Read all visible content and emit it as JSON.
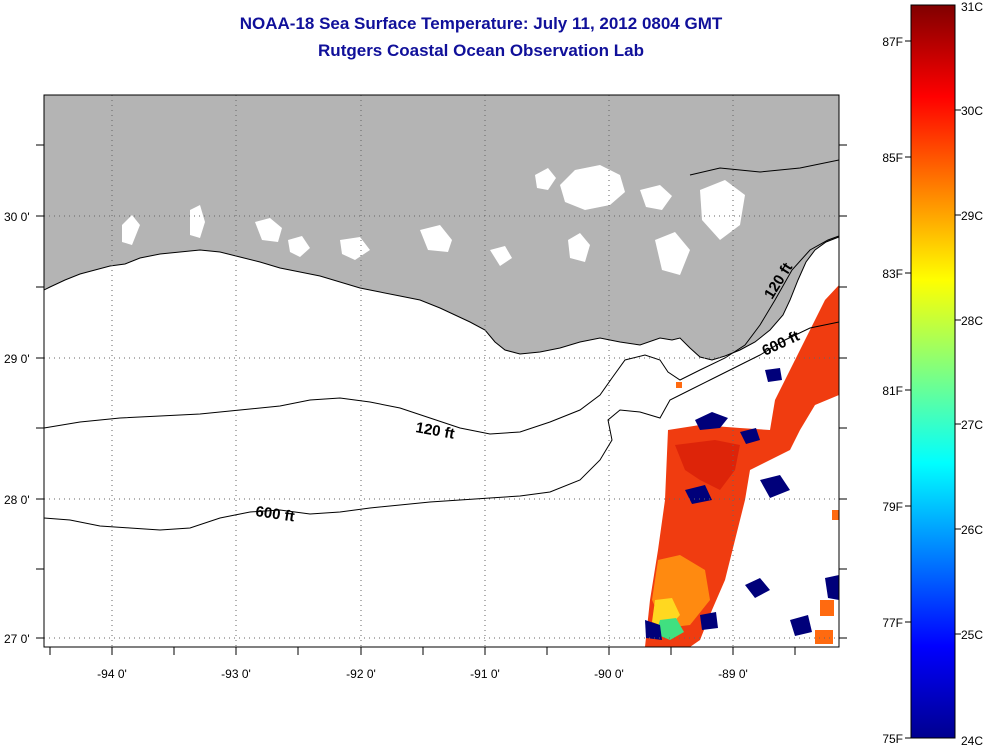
{
  "title": "NOAA-18 Sea Surface Temperature:  July 11, 2012 0804 GMT",
  "subtitle": "Rutgers Coastal Ocean Observation Lab",
  "longitude_labels": [
    "-94 0'",
    "-93 0'",
    "-92 0'",
    "-91 0'",
    "-90 0'",
    "-89 0'"
  ],
  "latitude_labels": [
    "30 0'",
    "29 0'",
    "28 0'",
    "27 0'"
  ],
  "contour_labels": [
    "120 ft",
    "600 ft",
    "120 ft",
    "600 ft"
  ],
  "colorbar": {
    "fahrenheit_labels": [
      "87F",
      "85F",
      "83F",
      "81F",
      "79F",
      "77F",
      "75F"
    ],
    "celsius_labels": [
      "31C",
      "30C",
      "29C",
      "28C",
      "27C",
      "26C",
      "25C",
      "24C"
    ],
    "min_celsius": 24,
    "max_celsius": 31
  },
  "colors": {
    "land": "#b4b4b4",
    "title": "#10109a",
    "warm_sst": "#f03c10",
    "cold_sst": "#00007a"
  }
}
